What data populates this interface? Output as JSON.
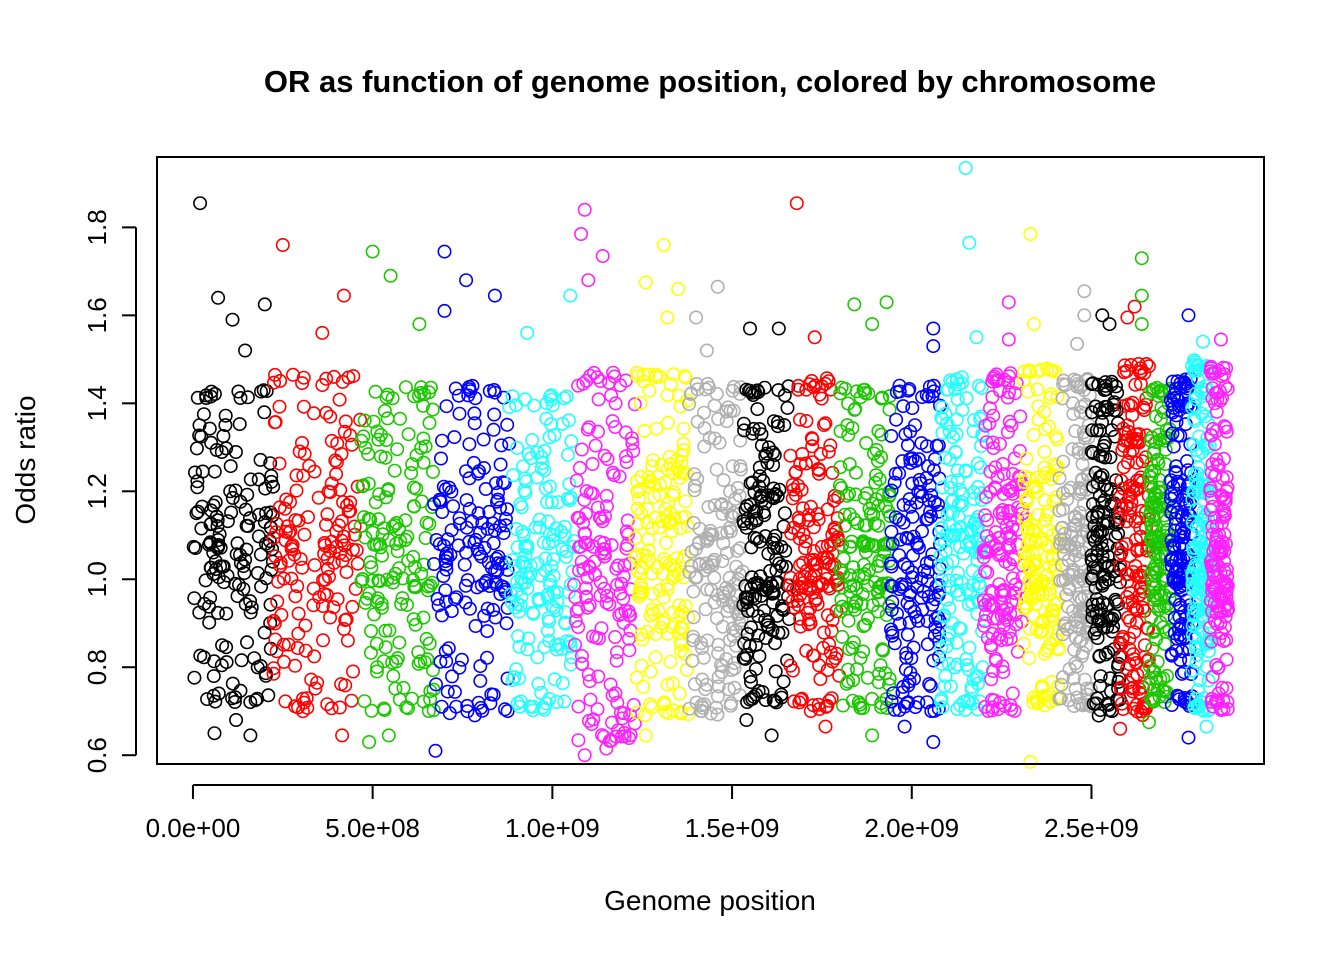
{
  "chart_data": {
    "type": "scatter",
    "title": "OR as function of genome position, colored by chromosome",
    "xlabel": "Genome position",
    "ylabel": "Odds ratio",
    "xlim": [
      -100000000.0,
      2980000000.0
    ],
    "ylim": [
      0.58,
      1.96
    ],
    "x_ticks": [
      {
        "value": 0,
        "label": "0.0e+00"
      },
      {
        "value": 500000000,
        "label": "5.0e+08"
      },
      {
        "value": 1000000000,
        "label": "1.0e+09"
      },
      {
        "value": 1500000000,
        "label": "1.5e+09"
      },
      {
        "value": 2000000000,
        "label": "2.0e+09"
      },
      {
        "value": 2500000000,
        "label": "2.5e+09"
      }
    ],
    "y_ticks": [
      {
        "value": 0.6,
        "label": "0.6"
      },
      {
        "value": 0.8,
        "label": "0.8"
      },
      {
        "value": 1.0,
        "label": "1.0"
      },
      {
        "value": 1.2,
        "label": "1.2"
      },
      {
        "value": 1.4,
        "label": "1.4"
      },
      {
        "value": 1.6,
        "label": "1.6"
      },
      {
        "value": 1.8,
        "label": "1.8"
      }
    ],
    "grid": false,
    "legend": "none",
    "marker": "open-circle",
    "palette": [
      "#000000",
      "#ff0000",
      "#1cc700",
      "#0000ff",
      "#22ffff",
      "#ff22ff",
      "#ffff00",
      "#b0b0b0"
    ],
    "chromosomes": [
      {
        "chr": 1,
        "start": 0.0,
        "end": 224000000.0,
        "color": "#000000",
        "low": 0.72,
        "high": 1.43,
        "outliers": [
          [
            20000000.0,
            1.855
          ],
          [
            70000000.0,
            1.64
          ],
          [
            145000000.0,
            1.52
          ],
          [
            200000000.0,
            1.625
          ],
          [
            60000000.0,
            0.65
          ],
          [
            160000000.0,
            0.645
          ],
          [
            110000000.0,
            1.59
          ],
          [
            120000000.0,
            0.68
          ]
        ]
      },
      {
        "chr": 2,
        "start": 224000000.0,
        "end": 466000000.0,
        "color": "#ff0000",
        "low": 0.7,
        "high": 1.47,
        "outliers": [
          [
            250000000.0,
            1.76
          ],
          [
            420000000.0,
            1.645
          ],
          [
            360000000.0,
            1.56
          ],
          [
            415000000.0,
            0.645
          ]
        ]
      },
      {
        "chr": 3,
        "start": 466000000.0,
        "end": 670000000.0,
        "color": "#1cc700",
        "low": 0.7,
        "high": 1.44,
        "outliers": [
          [
            500000000.0,
            1.745
          ],
          [
            550000000.0,
            1.69
          ],
          [
            630000000.0,
            1.58
          ],
          [
            490000000.0,
            0.63
          ],
          [
            545000000.0,
            0.645
          ]
        ]
      },
      {
        "chr": 4,
        "start": 670000000.0,
        "end": 880000000.0,
        "color": "#0000ff",
        "low": 0.69,
        "high": 1.44,
        "outliers": [
          [
            700000000.0,
            1.745
          ],
          [
            760000000.0,
            1.68
          ],
          [
            840000000.0,
            1.645
          ],
          [
            700000000.0,
            1.61
          ],
          [
            675000000.0,
            0.61
          ]
        ]
      },
      {
        "chr": 5,
        "start": 880000000.0,
        "end": 1060000000.0,
        "color": "#22ffff",
        "low": 0.7,
        "high": 1.42,
        "outliers": [
          [
            1050000000.0,
            1.645
          ],
          [
            930000000.0,
            1.56
          ]
        ]
      },
      {
        "chr": 6,
        "start": 1060000000.0,
        "end": 1230000000.0,
        "color": "#ff22ff",
        "low": 0.63,
        "high": 1.47,
        "outliers": [
          [
            1090000000.0,
            1.84
          ],
          [
            1080000000.0,
            1.785
          ],
          [
            1140000000.0,
            1.735
          ],
          [
            1100000000.0,
            1.68
          ],
          [
            1090000000.0,
            0.6
          ],
          [
            1150000000.0,
            0.615
          ]
        ]
      },
      {
        "chr": 7,
        "start": 1230000000.0,
        "end": 1380000000.0,
        "color": "#ffff00",
        "low": 0.69,
        "high": 1.47,
        "outliers": [
          [
            1310000000.0,
            1.76
          ],
          [
            1260000000.0,
            1.675
          ],
          [
            1350000000.0,
            1.66
          ],
          [
            1320000000.0,
            1.595
          ],
          [
            1260000000.0,
            0.645
          ]
        ]
      },
      {
        "chr": 8,
        "start": 1380000000.0,
        "end": 1530000000.0,
        "color": "#b0b0b0",
        "low": 0.69,
        "high": 1.45,
        "outliers": [
          [
            1460000000.0,
            1.665
          ],
          [
            1400000000.0,
            1.595
          ],
          [
            1430000000.0,
            1.52
          ]
        ]
      },
      {
        "chr": 9,
        "start": 1530000000.0,
        "end": 1660000000.0,
        "color": "#000000",
        "low": 0.72,
        "high": 1.44,
        "outliers": [
          [
            1550000000.0,
            1.57
          ],
          [
            1630000000.0,
            1.57
          ],
          [
            1540000000.0,
            0.68
          ],
          [
            1610000000.0,
            0.645
          ]
        ]
      },
      {
        "chr": 10,
        "start": 1660000000.0,
        "end": 1800000000.0,
        "color": "#ff0000",
        "low": 0.7,
        "high": 1.46,
        "outliers": [
          [
            1680000000.0,
            1.855
          ],
          [
            1730000000.0,
            1.55
          ],
          [
            1760000000.0,
            0.665
          ]
        ]
      },
      {
        "chr": 11,
        "start": 1800000000.0,
        "end": 1940000000.0,
        "color": "#1cc700",
        "low": 0.7,
        "high": 1.44,
        "outliers": [
          [
            1840000000.0,
            1.625
          ],
          [
            1930000000.0,
            1.63
          ],
          [
            1890000000.0,
            1.58
          ],
          [
            1890000000.0,
            0.645
          ]
        ]
      },
      {
        "chr": 12,
        "start": 1940000000.0,
        "end": 2080000000.0,
        "color": "#0000ff",
        "low": 0.7,
        "high": 1.44,
        "outliers": [
          [
            2060000000.0,
            1.57
          ],
          [
            2060000000.0,
            1.53
          ],
          [
            2060000000.0,
            0.63
          ],
          [
            1980000000.0,
            0.665
          ]
        ]
      },
      {
        "chr": 13,
        "start": 2080000000.0,
        "end": 2200000000.0,
        "color": "#22ffff",
        "low": 0.7,
        "high": 1.46,
        "outliers": [
          [
            2150000000.0,
            1.935
          ],
          [
            2160000000.0,
            1.765
          ],
          [
            2180000000.0,
            1.55
          ]
        ]
      },
      {
        "chr": 14,
        "start": 2200000000.0,
        "end": 2310000000.0,
        "color": "#ff22ff",
        "low": 0.7,
        "high": 1.47,
        "outliers": [
          [
            2270000000.0,
            1.63
          ],
          [
            2270000000.0,
            1.545
          ]
        ]
      },
      {
        "chr": 15,
        "start": 2310000000.0,
        "end": 2410000000.0,
        "color": "#ffff00",
        "low": 0.71,
        "high": 1.48,
        "outliers": [
          [
            2330000000.0,
            1.785
          ],
          [
            2330000000.0,
            0.585
          ],
          [
            2340000000.0,
            1.58
          ]
        ]
      },
      {
        "chr": 16,
        "start": 2410000000.0,
        "end": 2500000000.0,
        "color": "#b0b0b0",
        "low": 0.71,
        "high": 1.46,
        "outliers": [
          [
            2480000000.0,
            1.655
          ],
          [
            2480000000.0,
            1.6
          ],
          [
            2460000000.0,
            1.535
          ]
        ]
      },
      {
        "chr": 17,
        "start": 2500000000.0,
        "end": 2580000000.0,
        "color": "#000000",
        "low": 0.7,
        "high": 1.45,
        "outliers": [
          [
            2530000000.0,
            1.6
          ],
          [
            2550000000.0,
            1.58
          ],
          [
            2520000000.0,
            0.69
          ]
        ]
      },
      {
        "chr": 18,
        "start": 2580000000.0,
        "end": 2660000000.0,
        "color": "#ff0000",
        "low": 0.69,
        "high": 1.49,
        "outliers": [
          [
            2620000000.0,
            1.62
          ],
          [
            2600000000.0,
            1.595
          ],
          [
            2580000000.0,
            0.66
          ]
        ]
      },
      {
        "chr": 19,
        "start": 2660000000.0,
        "end": 2720000000.0,
        "color": "#1cc700",
        "low": 0.72,
        "high": 1.44,
        "outliers": [
          [
            2640000000.0,
            1.73
          ],
          [
            2640000000.0,
            1.645
          ],
          [
            2640000000.0,
            1.58
          ],
          [
            2660000000.0,
            0.675
          ]
        ]
      },
      {
        "chr": 20,
        "start": 2720000000.0,
        "end": 2780000000.0,
        "color": "#0000ff",
        "low": 0.71,
        "high": 1.46,
        "outliers": [
          [
            2770000000.0,
            1.6
          ],
          [
            2770000000.0,
            0.64
          ]
        ]
      },
      {
        "chr": 21,
        "start": 2780000000.0,
        "end": 2830000000.0,
        "color": "#22ffff",
        "low": 0.7,
        "high": 1.5,
        "outliers": [
          [
            2810000000.0,
            1.54
          ],
          [
            2820000000.0,
            0.665
          ]
        ]
      },
      {
        "chr": 22,
        "start": 2830000000.0,
        "end": 2880000000.0,
        "color": "#ff22ff",
        "low": 0.7,
        "high": 1.49,
        "outliers": [
          [
            2860000000.0,
            1.545
          ]
        ]
      }
    ]
  }
}
